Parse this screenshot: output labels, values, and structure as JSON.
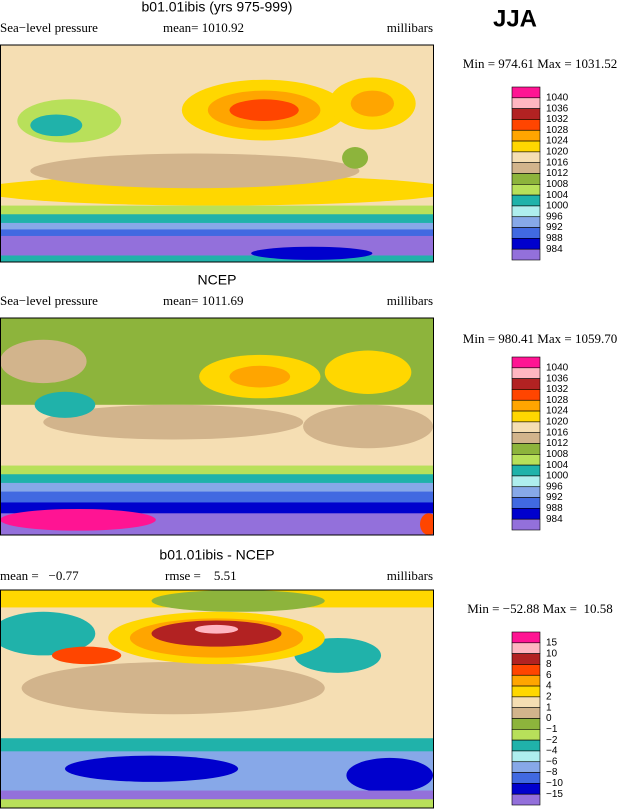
{
  "season": "JJA",
  "panels": [
    {
      "title": "b01.01ibis (yrs 975-999)",
      "left": "Sea−level pressure",
      "middle": "mean= 1010.92",
      "right": "millibars",
      "range": "Min = 974.61 Max = 1031.52",
      "legend": {
        "labels": [
          "1040",
          "1036",
          "1032",
          "1028",
          "1024",
          "1020",
          "1016",
          "1012",
          "1008",
          "1004",
          "1000",
          "996",
          "992",
          "988",
          "984"
        ],
        "colors": [
          "#ff1493",
          "#ffb6c1",
          "#b22222",
          "#ff4500",
          "#ffa500",
          "#ffd700",
          "#f5deb3",
          "#d2b48c",
          "#8db43c",
          "#b8e05a",
          "#20b2aa",
          "#afeeee",
          "#87a8e8",
          "#4169e1",
          "#0000cd",
          "#9370db"
        ]
      }
    },
    {
      "title": "NCEP",
      "left": "Sea−level pressure",
      "middle": "mean= 1011.69",
      "right": "millibars",
      "range": "Min = 980.41 Max = 1059.70",
      "legend": {
        "labels": [
          "1040",
          "1036",
          "1032",
          "1028",
          "1024",
          "1020",
          "1016",
          "1012",
          "1008",
          "1004",
          "1000",
          "996",
          "992",
          "988",
          "984"
        ],
        "colors": [
          "#ff1493",
          "#ffb6c1",
          "#b22222",
          "#ff4500",
          "#ffa500",
          "#ffd700",
          "#f5deb3",
          "#d2b48c",
          "#8db43c",
          "#b8e05a",
          "#20b2aa",
          "#afeeee",
          "#87a8e8",
          "#4169e1",
          "#0000cd",
          "#9370db"
        ]
      }
    },
    {
      "title": "b01.01ibis - NCEP",
      "left": "mean =   −0.77",
      "middle": "rmse =    5.51",
      "right": "millibars",
      "range": "Min = −52.88 Max =  10.58",
      "legend": {
        "labels": [
          "15",
          "10",
          "8",
          "6",
          "4",
          "2",
          "1",
          "0",
          "−1",
          "−2",
          "−4",
          "−6",
          "−8",
          "−10",
          "−15"
        ],
        "colors": [
          "#ff1493",
          "#ffb6c1",
          "#b22222",
          "#ff4500",
          "#ffa500",
          "#ffd700",
          "#f5deb3",
          "#d2b48c",
          "#8db43c",
          "#b8e05a",
          "#20b2aa",
          "#afeeee",
          "#87a8e8",
          "#4169e1",
          "#0000cd",
          "#9370db"
        ]
      }
    }
  ]
}
